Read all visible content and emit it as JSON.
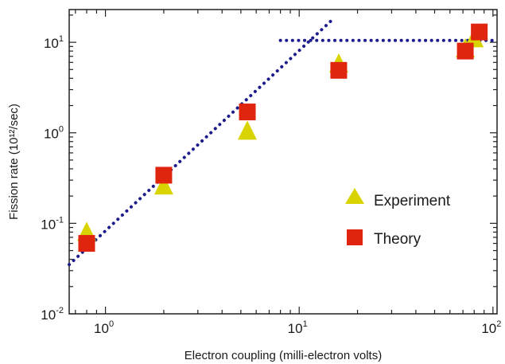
{
  "chart_data": {
    "type": "scatter",
    "title": "",
    "xlabel": "Electron coupling (milli-electron volts)",
    "ylabel": "Fission rate (10¹²/sec)",
    "xscale": "log",
    "yscale": "log",
    "xlim": [
      0.65,
      105
    ],
    "ylim": [
      0.01,
      23
    ],
    "x_ticks": [
      {
        "value": 1,
        "base": "10",
        "exp": "0"
      },
      {
        "value": 10,
        "base": "10",
        "exp": "1"
      },
      {
        "value": 100,
        "base": "10",
        "exp": "2"
      }
    ],
    "y_ticks": [
      {
        "value": 0.01,
        "base": "10",
        "exp": "-2"
      },
      {
        "value": 0.1,
        "base": "10",
        "exp": "-1"
      },
      {
        "value": 1,
        "base": "10",
        "exp": "0"
      },
      {
        "value": 10,
        "base": "10",
        "exp": "1"
      }
    ],
    "legend_position": "right",
    "grid": false,
    "series": [
      {
        "name": "Experiment",
        "marker": "triangle",
        "color": "#d9d400",
        "points": [
          {
            "x": 0.8,
            "y": 0.08
          },
          {
            "x": 2.0,
            "y": 0.26
          },
          {
            "x": 5.4,
            "y": 1.05
          },
          {
            "x": 16,
            "y": 5.8
          },
          {
            "x": 72,
            "y": 8.5
          },
          {
            "x": 80,
            "y": 11
          }
        ]
      },
      {
        "name": "Theory",
        "marker": "square",
        "color": "#e0250f",
        "points": [
          {
            "x": 0.8,
            "y": 0.06
          },
          {
            "x": 2.0,
            "y": 0.34
          },
          {
            "x": 5.4,
            "y": 1.7
          },
          {
            "x": 16,
            "y": 4.9
          },
          {
            "x": 72,
            "y": 8.0
          },
          {
            "x": 85,
            "y": 13
          }
        ]
      },
      {
        "name": "",
        "marker": "dotted-line",
        "color": "#1c1c8c",
        "points": [
          {
            "x": 0.65,
            "y": 0.035
          },
          {
            "x": 14.5,
            "y": 17
          }
        ]
      },
      {
        "name": "",
        "marker": "dotted-line",
        "color": "#1c1c8c",
        "points": [
          {
            "x": 8,
            "y": 10.5
          },
          {
            "x": 105,
            "y": 10.5
          }
        ]
      }
    ]
  }
}
